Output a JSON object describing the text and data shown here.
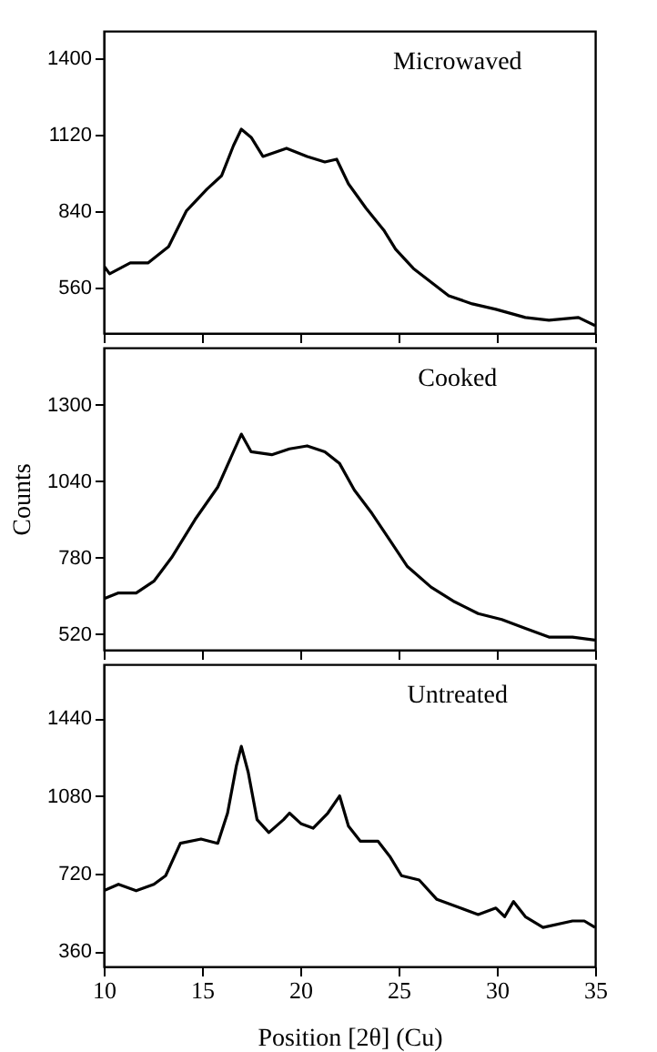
{
  "chart_data": [
    {
      "type": "line",
      "annotations": [
        "Microwaved"
      ],
      "xlim": [
        10,
        35
      ],
      "xticks": [
        10,
        15,
        20,
        25,
        30,
        35
      ],
      "ylim": [
        393,
        1500
      ],
      "yticks": [
        560,
        840,
        1120,
        1400
      ],
      "tick_labels": "y",
      "series": [
        {
          "color": "#000000",
          "x": [
            10.0,
            10.3,
            11.35,
            12.25,
            13.3,
            14.2,
            15.25,
            16.0,
            16.6,
            17.0,
            17.5,
            18.1,
            19.3,
            20.35,
            21.25,
            21.85,
            22.45,
            23.35,
            24.25,
            24.85,
            25.75,
            26.65,
            27.55,
            28.75,
            29.95,
            31.45,
            32.65,
            34.15,
            35.0
          ],
          "values": [
            640,
            610,
            650,
            650,
            710,
            840,
            920,
            970,
            1080,
            1140,
            1110,
            1040,
            1070,
            1040,
            1020,
            1030,
            940,
            850,
            770,
            700,
            630,
            580,
            530,
            500,
            480,
            450,
            440,
            450,
            420
          ]
        }
      ]
    },
    {
      "type": "line",
      "annotations": [
        "Cooked"
      ],
      "ylabel": "Counts",
      "xlim": [
        10,
        35
      ],
      "xticks": [
        10,
        15,
        20,
        25,
        30,
        35
      ],
      "ylim": [
        467,
        1494
      ],
      "yticks": [
        520,
        780,
        1040,
        1300
      ],
      "tick_labels": "y",
      "series": [
        {
          "color": "#000000",
          "x": [
            10.0,
            10.75,
            11.65,
            12.55,
            13.45,
            14.65,
            15.8,
            16.6,
            17.0,
            17.5,
            18.55,
            19.45,
            20.35,
            21.25,
            22.0,
            22.75,
            23.65,
            24.55,
            25.45,
            26.65,
            27.85,
            29.05,
            30.25,
            31.45,
            32.65,
            33.85,
            35.0
          ],
          "values": [
            640,
            660,
            660,
            700,
            780,
            910,
            1020,
            1140,
            1200,
            1140,
            1130,
            1150,
            1160,
            1140,
            1100,
            1010,
            930,
            840,
            750,
            680,
            630,
            590,
            570,
            540,
            510,
            510,
            500
          ]
        }
      ]
    },
    {
      "type": "line",
      "annotations": [
        "Untreated"
      ],
      "xlabel": "Position [2θ] (Cu)",
      "xlim": [
        10,
        35
      ],
      "xticks": [
        10,
        15,
        20,
        25,
        30,
        35
      ],
      "ylim": [
        289,
        1690
      ],
      "yticks": [
        360,
        720,
        1080,
        1440
      ],
      "series": [
        {
          "color": "#000000",
          "x": [
            10.0,
            10.75,
            11.65,
            12.55,
            13.15,
            13.9,
            14.95,
            15.8,
            16.3,
            16.75,
            17.0,
            17.35,
            17.8,
            18.4,
            19.15,
            19.45,
            20.05,
            20.65,
            21.4,
            22.0,
            22.45,
            23.05,
            23.95,
            24.55,
            25.15,
            26.05,
            26.95,
            28.15,
            29.05,
            29.95,
            30.4,
            30.85,
            31.45,
            32.35,
            33.85,
            34.45,
            35.0
          ],
          "values": [
            640,
            670,
            640,
            670,
            710,
            860,
            880,
            860,
            1000,
            1220,
            1310,
            1190,
            970,
            910,
            970,
            1000,
            950,
            930,
            1000,
            1080,
            940,
            870,
            870,
            800,
            710,
            690,
            600,
            560,
            530,
            560,
            520,
            590,
            520,
            470,
            500,
            500,
            470
          ]
        }
      ]
    }
  ]
}
